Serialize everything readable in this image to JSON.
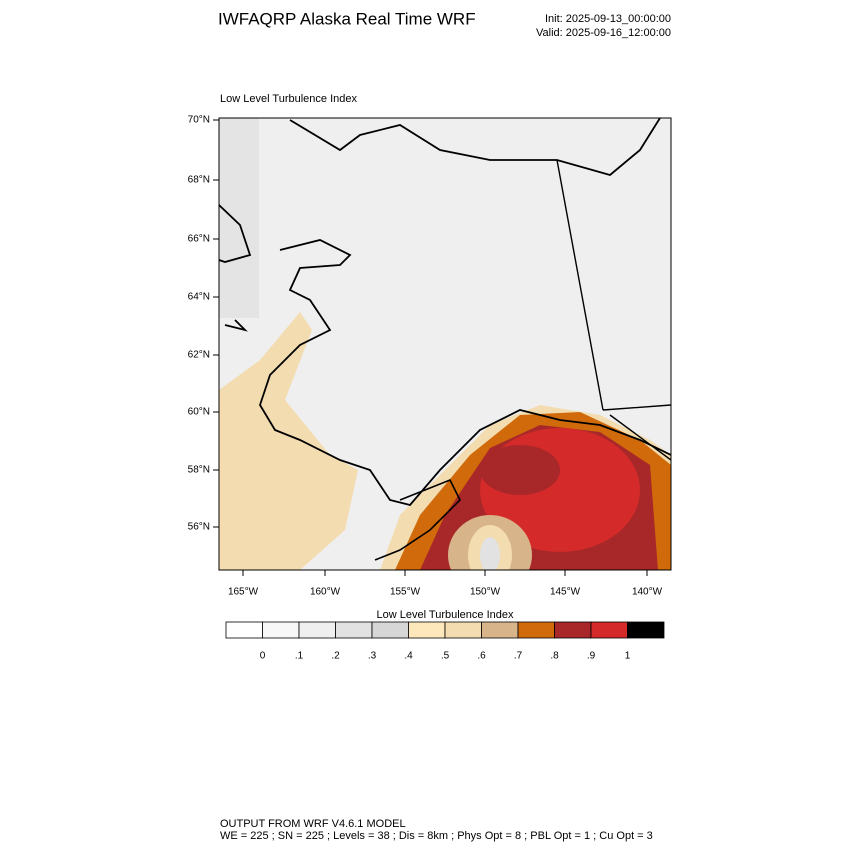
{
  "header": {
    "title": "IWFAQRP Alaska Real Time WRF",
    "init": "Init: 2025-09-13_00:00:00",
    "valid": "Valid: 2025-09-16_12:00:00"
  },
  "map": {
    "title": "Low Level Turbulence Index",
    "lat_labels": [
      "70°N",
      "68°N",
      "66°N",
      "64°N",
      "62°N",
      "60°N",
      "58°N",
      "56°N"
    ],
    "lon_labels": [
      "165°W",
      "160°W",
      "155°W",
      "150°W",
      "145°W",
      "140°W"
    ]
  },
  "colorbar": {
    "title": "Low Level Turbulence Index",
    "colors": [
      "#ffffff",
      "#f7f7f7",
      "#efefef",
      "#e2e2e2",
      "#d6d6d6",
      "#fde8bc",
      "#f3dcb0",
      "#d8b48a",
      "#d06a0a",
      "#a8282a",
      "#d42a2a",
      "#000000"
    ],
    "labels": [
      "0",
      ".1",
      ".2",
      ".3",
      ".4",
      ".5",
      ".6",
      ".7",
      ".8",
      ".9",
      "1"
    ]
  },
  "footer": {
    "line1": "OUTPUT FROM WRF V4.6.1 MODEL",
    "line2": "WE = 225 ; SN = 225 ; Levels = 38 ; Dis = 8km ; Phys Opt = 8 ; PBL Opt = 1 ; Cu Opt = 3"
  }
}
